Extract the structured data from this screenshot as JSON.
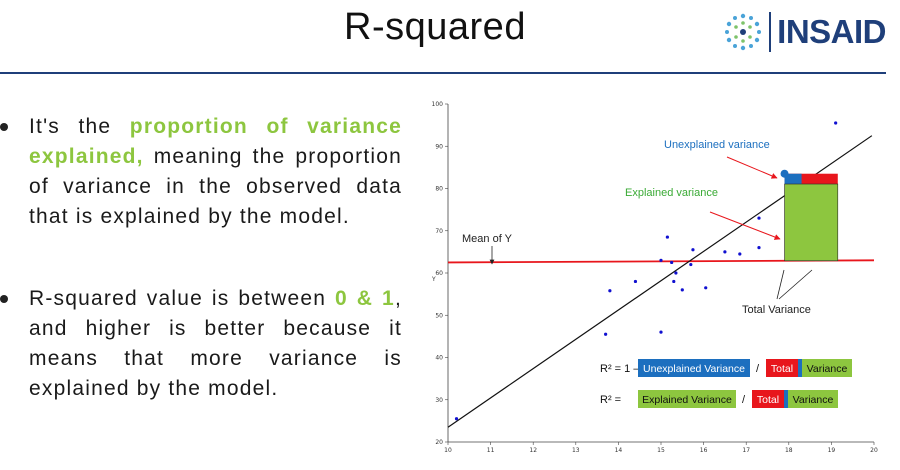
{
  "header": {
    "title": "R-squared",
    "logo_text": "INSAID",
    "accent_color": "#1f3f7a"
  },
  "bullets": [
    {
      "pre": "It's the ",
      "highlight": "proportion of variance explained,",
      "post": " meaning the proportion of variance in the observed data that is explained by the model."
    },
    {
      "pre": "R-squared value is between ",
      "highlight": "0 & 1",
      "post": ", and higher is better because it means that more variance is explained by the model."
    }
  ],
  "highlight_color": "#8dc63f",
  "chart_data": {
    "type": "scatter",
    "title": "",
    "xlabel": "",
    "ylabel": "Y",
    "xlim": [
      10,
      20
    ],
    "ylim": [
      20,
      100
    ],
    "x_ticks": [
      "10",
      "11",
      "12",
      "13",
      "14",
      "15",
      "16",
      "17",
      "18",
      "19",
      "20"
    ],
    "y_ticks": [
      "20",
      "30",
      "40",
      "50",
      "60",
      "70",
      "80",
      "90",
      "100"
    ],
    "points": [
      {
        "x": 10.2,
        "y": 25.5
      },
      {
        "x": 13.7,
        "y": 45.5
      },
      {
        "x": 13.8,
        "y": 55.8
      },
      {
        "x": 14.4,
        "y": 58.0
      },
      {
        "x": 15.0,
        "y": 46.0
      },
      {
        "x": 15.0,
        "y": 63.0
      },
      {
        "x": 15.15,
        "y": 68.5
      },
      {
        "x": 15.25,
        "y": 62.5
      },
      {
        "x": 15.3,
        "y": 58.0
      },
      {
        "x": 15.35,
        "y": 60.0
      },
      {
        "x": 15.5,
        "y": 56.0
      },
      {
        "x": 15.7,
        "y": 62.0
      },
      {
        "x": 15.75,
        "y": 65.5
      },
      {
        "x": 16.05,
        "y": 56.5
      },
      {
        "x": 16.5,
        "y": 65.0
      },
      {
        "x": 16.85,
        "y": 64.5
      },
      {
        "x": 17.3,
        "y": 66.0
      },
      {
        "x": 17.3,
        "y": 73.0
      },
      {
        "x": 19.1,
        "y": 95.5
      }
    ],
    "highlighted_point": {
      "x": 17.9,
      "y": 83.5
    },
    "regression_line": {
      "x": [
        10,
        19.95
      ],
      "y": [
        23.5,
        92.5
      ]
    },
    "mean_line": {
      "x": [
        10,
        20
      ],
      "y": [
        62.5,
        63.0
      ]
    },
    "mean_label": "Mean of Y",
    "labels": {
      "unexplained": "Unexplained variance",
      "explained": "Explained variance",
      "total": "Total Variance"
    },
    "colors": {
      "points": "#1010d0",
      "regression": "#111111",
      "mean": "#e8161c",
      "unexplained": "#1c6fbf",
      "total": "#e8161c",
      "explained": "#8dc63f",
      "unexplained_text": "#1c6fbf",
      "explained_text": "#3aaa35"
    },
    "formula1": {
      "prefix": "R² = 1 –",
      "numerator": "Unexplained Variance",
      "slash": "/",
      "denom_a": "Total",
      "denom_b": "Variance"
    },
    "formula2": {
      "prefix": "R² =",
      "numerator": "Explained Variance",
      "slash": "/",
      "denom_a": "Total",
      "denom_b": "Variance"
    }
  }
}
